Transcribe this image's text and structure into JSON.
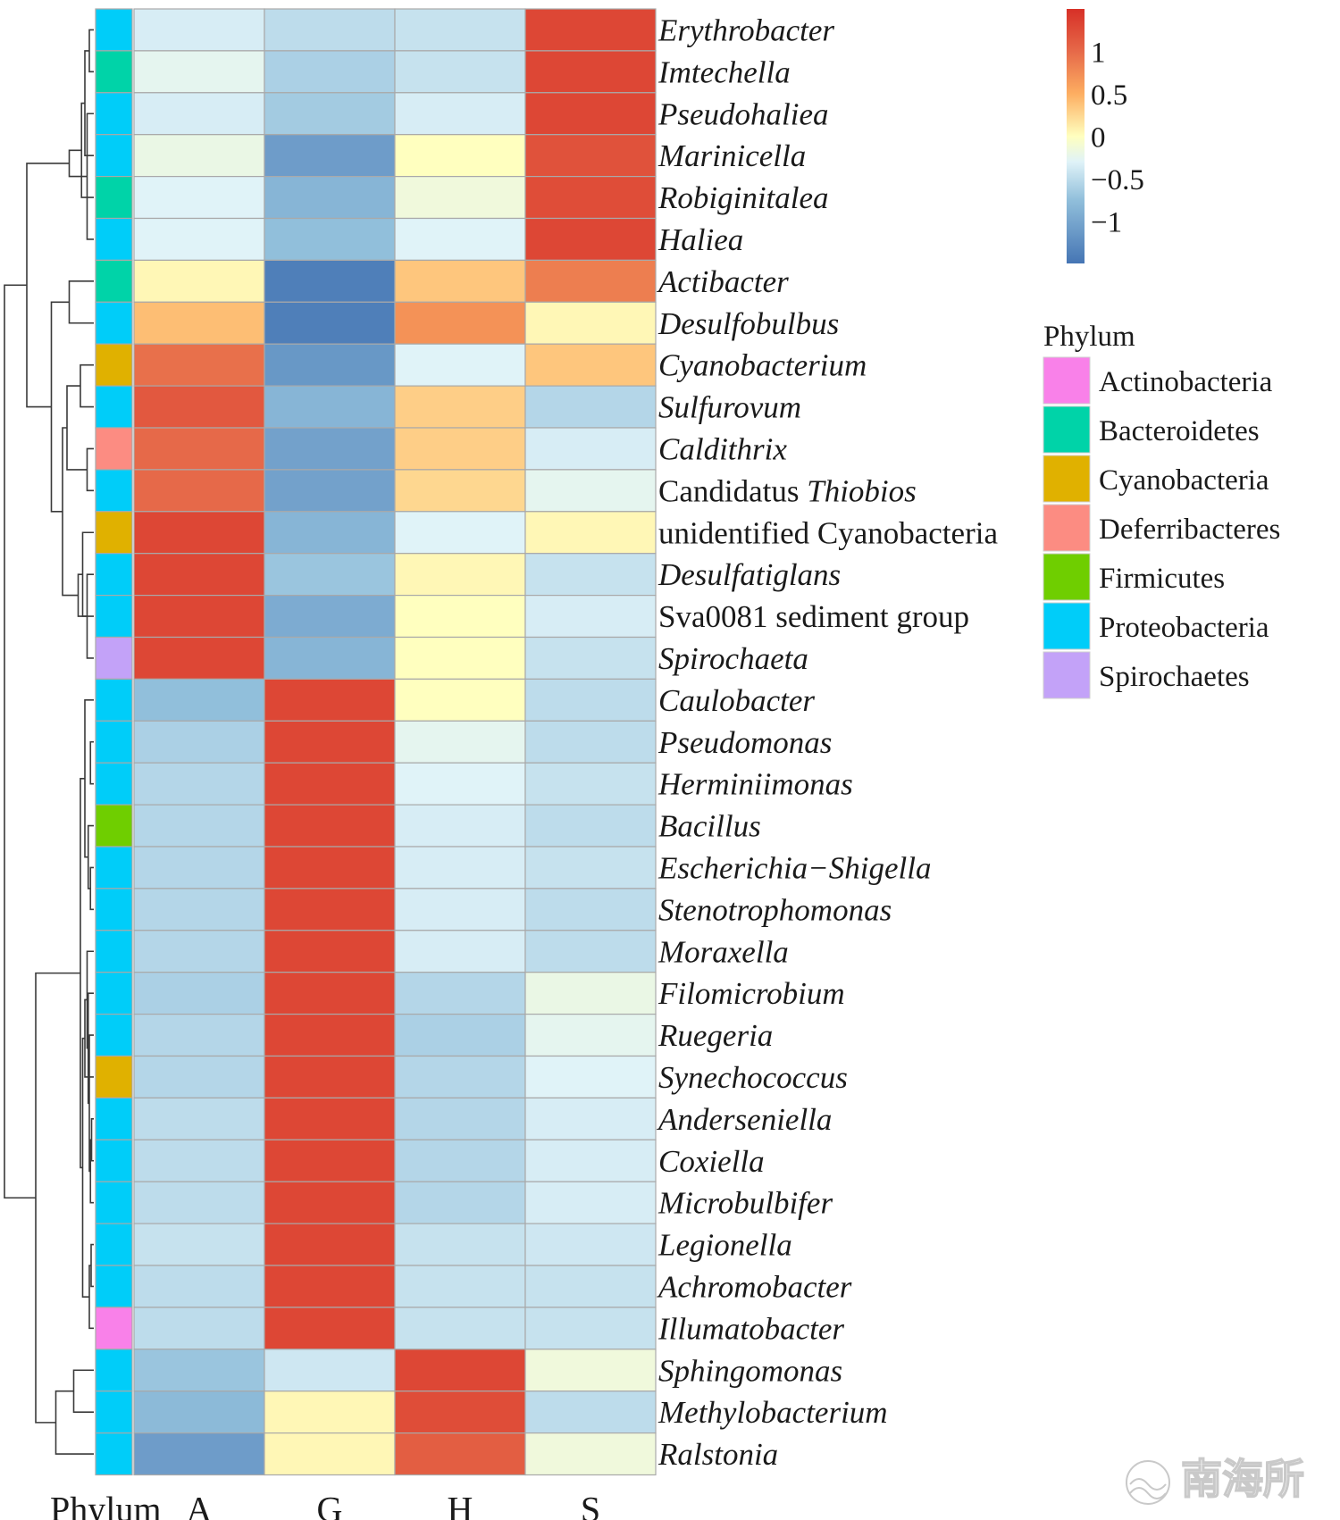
{
  "chart_data": {
    "type": "heatmap",
    "columns": [
      "A",
      "G",
      "H",
      "S"
    ],
    "annotation_label": "Phylum",
    "rows": [
      {
        "genus": "Erythrobacter",
        "prefix": "",
        "italic": true,
        "phylum": "Proteobacteria",
        "values": [
          -0.35,
          -0.5,
          -0.45,
          1.3
        ]
      },
      {
        "genus": "Imtechella",
        "prefix": "",
        "italic": true,
        "phylum": "Bacteroidetes",
        "values": [
          -0.25,
          -0.6,
          -0.45,
          1.3
        ]
      },
      {
        "genus": "Pseudohaliea",
        "prefix": "",
        "italic": true,
        "phylum": "Proteobacteria",
        "values": [
          -0.35,
          -0.65,
          -0.35,
          1.3
        ]
      },
      {
        "genus": "Marinicella",
        "prefix": "",
        "italic": true,
        "phylum": "Proteobacteria",
        "values": [
          -0.2,
          -1.1,
          0.0,
          1.2
        ]
      },
      {
        "genus": "Robiginitalea",
        "prefix": "",
        "italic": true,
        "phylum": "Bacteroidetes",
        "values": [
          -0.3,
          -0.85,
          -0.15,
          1.25
        ]
      },
      {
        "genus": "Haliea",
        "prefix": "",
        "italic": true,
        "phylum": "Proteobacteria",
        "values": [
          -0.3,
          -0.75,
          -0.3,
          1.3
        ]
      },
      {
        "genus": "Actibacter",
        "prefix": "",
        "italic": true,
        "phylum": "Bacteroidetes",
        "values": [
          0.05,
          -1.4,
          0.35,
          0.85
        ]
      },
      {
        "genus": "Desulfobulbus",
        "prefix": "",
        "italic": true,
        "phylum": "Proteobacteria",
        "values": [
          0.4,
          -1.4,
          0.7,
          0.05
        ]
      },
      {
        "genus": "Cyanobacterium",
        "prefix": "",
        "italic": true,
        "phylum": "Cyanobacteria",
        "values": [
          0.95,
          -1.15,
          -0.3,
          0.35
        ]
      },
      {
        "genus": "Sulfurovum",
        "prefix": "",
        "italic": true,
        "phylum": "Proteobacteria",
        "values": [
          1.15,
          -0.85,
          0.3,
          -0.55
        ]
      },
      {
        "genus": "Caldithrix",
        "prefix": "",
        "italic": true,
        "phylum": "Deferribacteres",
        "values": [
          1.0,
          -1.05,
          0.3,
          -0.35
        ]
      },
      {
        "genus": "Thiobios",
        "prefix": "Candidatus ",
        "italic": true,
        "phylum": "Proteobacteria",
        "values": [
          1.0,
          -1.05,
          0.25,
          -0.25
        ]
      },
      {
        "genus": "unidentified Cyanobacteria",
        "prefix": "",
        "italic": false,
        "phylum": "Cyanobacteria",
        "values": [
          1.3,
          -0.85,
          -0.3,
          0.05
        ]
      },
      {
        "genus": "Desulfatiglans",
        "prefix": "",
        "italic": true,
        "phylum": "Proteobacteria",
        "values": [
          1.3,
          -0.7,
          0.05,
          -0.45
        ]
      },
      {
        "genus": "Sva0081 sediment group",
        "prefix": "",
        "italic": false,
        "phylum": "Proteobacteria",
        "values": [
          1.3,
          -0.95,
          0.0,
          -0.35
        ]
      },
      {
        "genus": "Spirochaeta",
        "prefix": "",
        "italic": true,
        "phylum": "Spirochaetes",
        "values": [
          1.3,
          -0.85,
          0.0,
          -0.45
        ]
      },
      {
        "genus": "Caulobacter",
        "prefix": "",
        "italic": true,
        "phylum": "Proteobacteria",
        "values": [
          -0.75,
          1.3,
          0.0,
          -0.5
        ]
      },
      {
        "genus": "Pseudomonas",
        "prefix": "",
        "italic": true,
        "phylum": "Proteobacteria",
        "values": [
          -0.6,
          1.3,
          -0.25,
          -0.5
        ]
      },
      {
        "genus": "Herminiimonas",
        "prefix": "",
        "italic": true,
        "phylum": "Proteobacteria",
        "values": [
          -0.55,
          1.3,
          -0.3,
          -0.45
        ]
      },
      {
        "genus": "Bacillus",
        "prefix": "",
        "italic": true,
        "phylum": "Firmicutes",
        "values": [
          -0.55,
          1.3,
          -0.35,
          -0.5
        ]
      },
      {
        "genus": "Escherichia−Shigella",
        "prefix": "",
        "italic": true,
        "phylum": "Proteobacteria",
        "values": [
          -0.55,
          1.3,
          -0.35,
          -0.45
        ]
      },
      {
        "genus": "Stenotrophomonas",
        "prefix": "",
        "italic": true,
        "phylum": "Proteobacteria",
        "values": [
          -0.55,
          1.3,
          -0.35,
          -0.5
        ]
      },
      {
        "genus": "Moraxella",
        "prefix": "",
        "italic": true,
        "phylum": "Proteobacteria",
        "values": [
          -0.55,
          1.3,
          -0.35,
          -0.5
        ]
      },
      {
        "genus": "Filomicrobium",
        "prefix": "",
        "italic": true,
        "phylum": "Proteobacteria",
        "values": [
          -0.6,
          1.3,
          -0.55,
          -0.2
        ]
      },
      {
        "genus": "Ruegeria",
        "prefix": "",
        "italic": true,
        "phylum": "Proteobacteria",
        "values": [
          -0.55,
          1.3,
          -0.6,
          -0.25
        ]
      },
      {
        "genus": "Synechococcus",
        "prefix": "",
        "italic": true,
        "phylum": "Cyanobacteria",
        "values": [
          -0.55,
          1.3,
          -0.55,
          -0.3
        ]
      },
      {
        "genus": "Anderseniella",
        "prefix": "",
        "italic": true,
        "phylum": "Proteobacteria",
        "values": [
          -0.5,
          1.3,
          -0.55,
          -0.35
        ]
      },
      {
        "genus": "Coxiella",
        "prefix": "",
        "italic": true,
        "phylum": "Proteobacteria",
        "values": [
          -0.5,
          1.3,
          -0.55,
          -0.35
        ]
      },
      {
        "genus": "Microbulbifer",
        "prefix": "",
        "italic": true,
        "phylum": "Proteobacteria",
        "values": [
          -0.5,
          1.3,
          -0.55,
          -0.35
        ]
      },
      {
        "genus": "Legionella",
        "prefix": "",
        "italic": true,
        "phylum": "Proteobacteria",
        "values": [
          -0.45,
          1.3,
          -0.45,
          -0.4
        ]
      },
      {
        "genus": "Achromobacter",
        "prefix": "",
        "italic": true,
        "phylum": "Proteobacteria",
        "values": [
          -0.5,
          1.3,
          -0.45,
          -0.45
        ]
      },
      {
        "genus": "Illumatobacter",
        "prefix": "",
        "italic": true,
        "phylum": "Actinobacteria",
        "values": [
          -0.5,
          1.3,
          -0.45,
          -0.45
        ]
      },
      {
        "genus": "Sphingomonas",
        "prefix": "",
        "italic": true,
        "phylum": "Proteobacteria",
        "values": [
          -0.7,
          -0.4,
          1.3,
          -0.15
        ]
      },
      {
        "genus": "Methylobacterium",
        "prefix": "",
        "italic": true,
        "phylum": "Proteobacteria",
        "values": [
          -0.8,
          0.05,
          1.25,
          -0.5
        ]
      },
      {
        "genus": "Ralstonia",
        "prefix": "",
        "italic": true,
        "phylum": "Proteobacteria",
        "values": [
          -1.1,
          0.05,
          1.1,
          -0.15
        ]
      }
    ],
    "color_scale": {
      "min": -1.5,
      "max": 1.5,
      "stops": [
        {
          "value": -1.5,
          "color": "#4575b4"
        },
        {
          "value": -0.75,
          "color": "#91bfdb"
        },
        {
          "value": -0.3,
          "color": "#e0f3f8"
        },
        {
          "value": 0.0,
          "color": "#ffffbf"
        },
        {
          "value": 0.5,
          "color": "#fdae61"
        },
        {
          "value": 1.0,
          "color": "#e66949"
        },
        {
          "value": 1.5,
          "color": "#d73027"
        }
      ],
      "ticks": [
        {
          "value": 1,
          "label": "1"
        },
        {
          "value": 0.5,
          "label": "0.5"
        },
        {
          "value": 0,
          "label": "0"
        },
        {
          "value": -0.5,
          "label": "−0.5"
        },
        {
          "value": -1,
          "label": "−1"
        }
      ]
    },
    "legend": {
      "title": "Phylum",
      "entries": [
        {
          "label": "Actinobacteria",
          "color": "#f981e9"
        },
        {
          "label": "Bacteroidetes",
          "color": "#00d3a8"
        },
        {
          "label": "Cyanobacteria",
          "color": "#e0b100"
        },
        {
          "label": "Deferribacteres",
          "color": "#fc8c82"
        },
        {
          "label": "Firmicutes",
          "color": "#6fce00"
        },
        {
          "label": "Proteobacteria",
          "color": "#00cdf9"
        },
        {
          "label": "Spirochaetes",
          "color": "#c3a2f8"
        }
      ]
    },
    "dendrogram": {
      "merges": [
        [
          0,
          1,
          0.02
        ],
        [
          2,
          5,
          0.03
        ],
        [
          -1,
          3,
          0.04
        ],
        [
          4,
          -3,
          0.055
        ],
        [
          -2,
          -4,
          0.11
        ],
        [
          6,
          7,
          0.11
        ],
        [
          8,
          9,
          0.06
        ],
        [
          10,
          11,
          0.03
        ],
        [
          -7,
          -8,
          0.12
        ],
        [
          13,
          15,
          0.03
        ],
        [
          12,
          -10,
          0.05
        ],
        [
          14,
          -11,
          0.07
        ],
        [
          -9,
          -12,
          0.14
        ],
        [
          -6,
          -13,
          0.19
        ],
        [
          -5,
          -14,
          0.3
        ],
        [
          17,
          18,
          0.015
        ],
        [
          20,
          21,
          0.015
        ],
        [
          19,
          -17,
          0.025
        ],
        [
          16,
          -18,
          0.04
        ],
        [
          26,
          27,
          0.01
        ],
        [
          28,
          -20,
          0.015
        ],
        [
          24,
          -21,
          0.02
        ],
        [
          23,
          -22,
          0.025
        ],
        [
          22,
          -23,
          0.03
        ],
        [
          29,
          30,
          0.012
        ],
        [
          -25,
          31,
          0.02
        ],
        [
          25,
          -24,
          0.04
        ],
        [
          -27,
          -26,
          0.05
        ],
        [
          -19,
          -28,
          0.06
        ],
        [
          32,
          33,
          0.09
        ],
        [
          -30,
          34,
          0.17
        ],
        [
          -29,
          -31,
          0.26
        ],
        [
          -15,
          -32,
          0.4
        ]
      ],
      "max_height": 0.4
    }
  },
  "watermark": "南海所"
}
